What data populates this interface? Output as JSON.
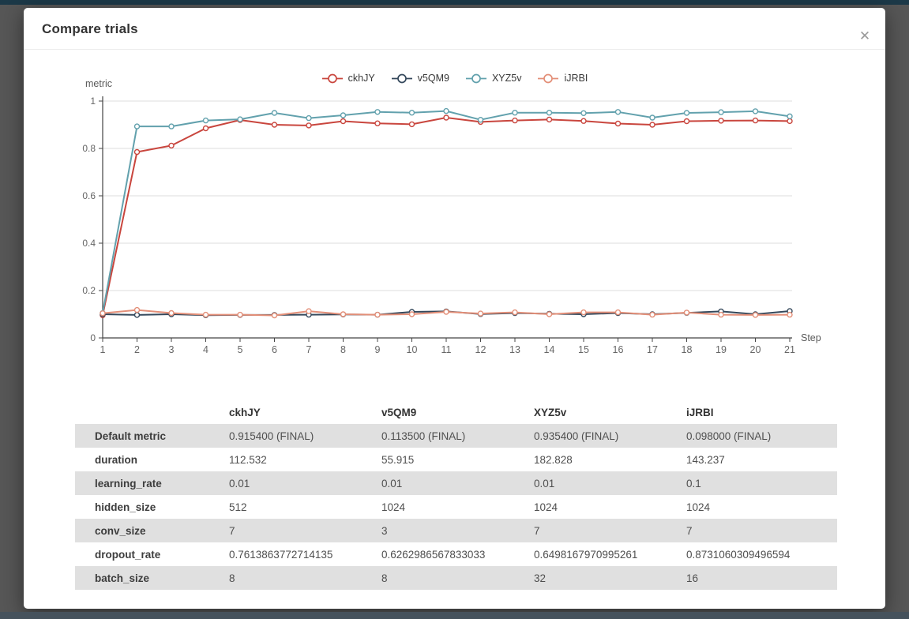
{
  "modal": {
    "title": "Compare trials",
    "close_icon": "✕"
  },
  "chart_data": {
    "type": "line",
    "title": "",
    "xlabel": "Step",
    "ylabel": "metric",
    "xlim": [
      1,
      21
    ],
    "ylim": [
      0,
      1
    ],
    "xticks": [
      1,
      2,
      3,
      4,
      5,
      6,
      7,
      8,
      9,
      10,
      11,
      12,
      13,
      14,
      15,
      16,
      17,
      18,
      19,
      20,
      21
    ],
    "yticks": [
      0,
      0.2,
      0.4,
      0.6,
      0.8,
      1
    ],
    "grid": "horizontal",
    "legend_position": "top-center",
    "x": [
      1,
      2,
      3,
      4,
      5,
      6,
      7,
      8,
      9,
      10,
      11,
      12,
      13,
      14,
      15,
      16,
      17,
      18,
      19,
      20,
      21
    ],
    "series": [
      {
        "name": "ckhJY",
        "color": "#c9463e",
        "values": [
          0.096,
          0.785,
          0.812,
          0.885,
          0.92,
          0.9,
          0.897,
          0.915,
          0.906,
          0.902,
          0.93,
          0.912,
          0.918,
          0.922,
          0.916,
          0.905,
          0.9,
          0.915,
          0.917,
          0.918,
          0.9154
        ]
      },
      {
        "name": "v5QM9",
        "color": "#35495c",
        "values": [
          0.1,
          0.097,
          0.1,
          0.096,
          0.097,
          0.097,
          0.098,
          0.099,
          0.098,
          0.11,
          0.112,
          0.101,
          0.105,
          0.102,
          0.1,
          0.105,
          0.1,
          0.106,
          0.112,
          0.1,
          0.1135
        ]
      },
      {
        "name": "XYZ5v",
        "color": "#62a1ad",
        "values": [
          0.105,
          0.893,
          0.893,
          0.918,
          0.923,
          0.95,
          0.928,
          0.94,
          0.954,
          0.951,
          0.958,
          0.921,
          0.951,
          0.951,
          0.949,
          0.954,
          0.93,
          0.95,
          0.953,
          0.957,
          0.9354
        ]
      },
      {
        "name": "iJRBI",
        "color": "#e38f78",
        "values": [
          0.104,
          0.118,
          0.105,
          0.098,
          0.098,
          0.095,
          0.113,
          0.1,
          0.098,
          0.1,
          0.11,
          0.103,
          0.108,
          0.1,
          0.108,
          0.108,
          0.098,
          0.107,
          0.098,
          0.097,
          0.098
        ]
      }
    ]
  },
  "table": {
    "columns": [
      "",
      "ckhJY",
      "v5QM9",
      "XYZ5v",
      "iJRBI"
    ],
    "rows": [
      {
        "label": "Default metric",
        "values": [
          "0.915400 (FINAL)",
          "0.113500 (FINAL)",
          "0.935400 (FINAL)",
          "0.098000 (FINAL)"
        ]
      },
      {
        "label": "duration",
        "values": [
          "112.532",
          "55.915",
          "182.828",
          "143.237"
        ]
      },
      {
        "label": "learning_rate",
        "values": [
          "0.01",
          "0.01",
          "0.01",
          "0.1"
        ]
      },
      {
        "label": "hidden_size",
        "values": [
          "512",
          "1024",
          "1024",
          "1024"
        ]
      },
      {
        "label": "conv_size",
        "values": [
          "7",
          "3",
          "7",
          "7"
        ]
      },
      {
        "label": "dropout_rate",
        "values": [
          "0.7613863772714135",
          "0.6262986567833033",
          "0.6498167970995261",
          "0.8731060309496594"
        ]
      },
      {
        "label": "batch_size",
        "values": [
          "8",
          "8",
          "32",
          "16"
        ]
      }
    ]
  },
  "colors": {
    "topbar": "#1c3948",
    "backdrop": "#565656",
    "stripe_row": "#e0e0e0",
    "grid_line": "#dcdcdc",
    "axis_line": "#444444",
    "axis_text": "#666666"
  }
}
